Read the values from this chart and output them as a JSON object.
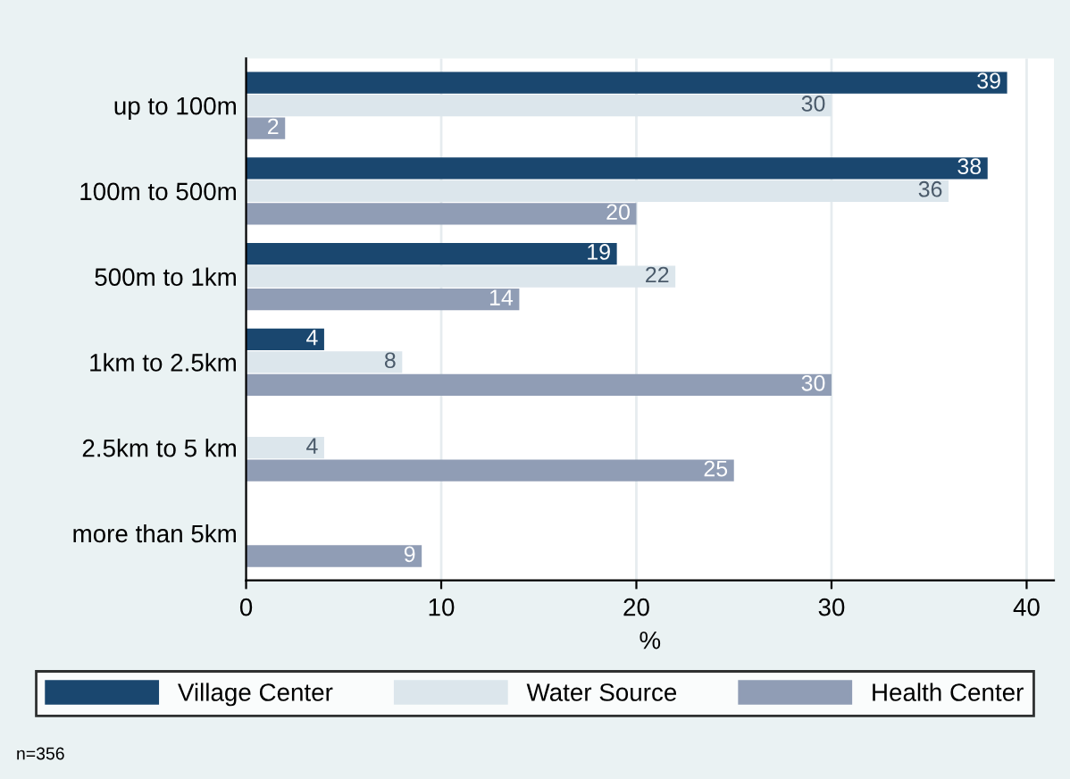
{
  "chart_data": {
    "type": "bar",
    "orientation": "horizontal",
    "xlabel": "%",
    "categories": [
      "up to 100m",
      "100m to 500m",
      "500m to 1km",
      "1km to 2.5km",
      "2.5km to 5 km",
      "more than 5km"
    ],
    "series": [
      {
        "name": "Village Center",
        "color": "#1a476f",
        "values": [
          39,
          38,
          19,
          4,
          null,
          null
        ]
      },
      {
        "name": "Water Source",
        "color": "#dce6ec",
        "values": [
          30,
          36,
          22,
          8,
          4,
          null
        ]
      },
      {
        "name": "Health Center",
        "color": "#909db5",
        "values": [
          2,
          20,
          14,
          30,
          25,
          9
        ]
      }
    ],
    "xlim": [
      0,
      41.4
    ],
    "xticks": [
      0,
      10,
      20,
      30,
      40
    ],
    "grid": "x",
    "legend": "bottom",
    "data_labels": true,
    "annotations": [
      "n=356"
    ]
  }
}
